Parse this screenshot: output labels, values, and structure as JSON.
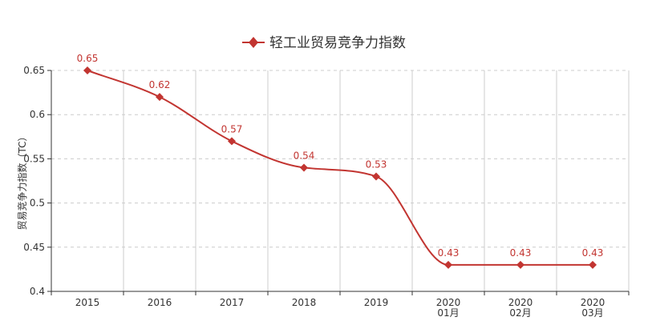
{
  "chart_data": {
    "type": "line",
    "title": "",
    "legend": {
      "position": "top-center"
    },
    "ylabel": "贸易竞争力指数（TC）",
    "xlabel": "",
    "ylim": [
      0.4,
      0.65
    ],
    "yticks": [
      "0.65",
      "0.6",
      "0.55",
      "0.5",
      "0.45",
      "0.4"
    ],
    "categories": [
      [
        "2015"
      ],
      [
        "2016"
      ],
      [
        "2017"
      ],
      [
        "2018"
      ],
      [
        "2019"
      ],
      [
        "2020",
        "01月"
      ],
      [
        "2020",
        "02月"
      ],
      [
        "2020",
        "03月"
      ]
    ],
    "series": [
      {
        "name": "轻工业贸易竞争力指数",
        "color": "#c23531",
        "marker": "diamond",
        "smooth": true,
        "values": [
          0.65,
          0.62,
          0.57,
          0.54,
          0.53,
          0.43,
          0.43,
          0.43
        ],
        "labels": [
          "0.65",
          "0.62",
          "0.57",
          "0.54",
          "0.53",
          "0.43",
          "0.43",
          "0.43"
        ]
      }
    ],
    "grid": {
      "vertical": "solid",
      "horizontal": "dashed"
    }
  }
}
